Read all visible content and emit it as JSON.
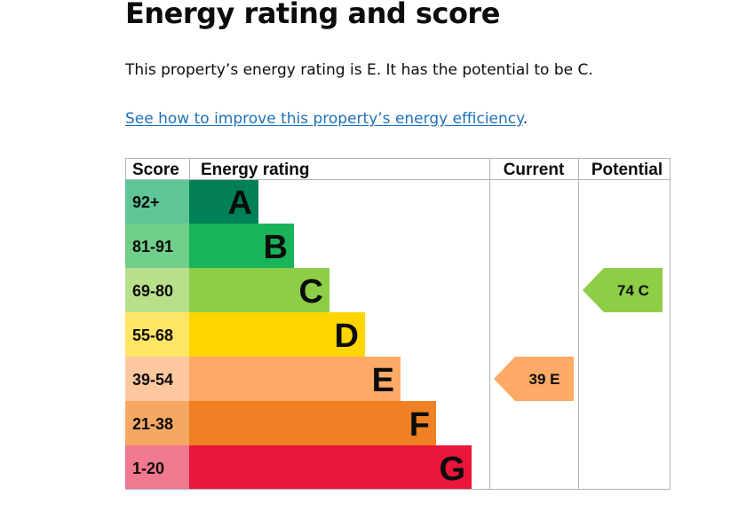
{
  "heading": "Energy rating and score",
  "summary": "This property’s energy rating is E. It has the potential to be C.",
  "improve_link": "See how to improve this property’s energy efficiency",
  "improve_suffix": ".",
  "chart_data": {
    "type": "bar",
    "headers": {
      "score": "Score",
      "rating": "Energy rating",
      "current": "Current",
      "potential": "Potential"
    },
    "bands": [
      {
        "band": "A",
        "score_range": "92+",
        "bar_color": "#008054",
        "score_color": "#5fc596"
      },
      {
        "band": "B",
        "score_range": "81-91",
        "bar_color": "#19b459",
        "score_color": "#6fcf8a"
      },
      {
        "band": "C",
        "score_range": "69-80",
        "bar_color": "#8dce46",
        "score_color": "#b8e08a"
      },
      {
        "band": "D",
        "score_range": "55-68",
        "bar_color": "#ffd500",
        "score_color": "#ffe566"
      },
      {
        "band": "E",
        "score_range": "39-54",
        "bar_color": "#fcaa65",
        "score_color": "#fdc89f"
      },
      {
        "band": "F",
        "score_range": "21-38",
        "bar_color": "#ef8023",
        "score_color": "#f5a863"
      },
      {
        "band": "G",
        "score_range": "1-20",
        "bar_color": "#e9153b",
        "score_color": "#f1798f"
      }
    ],
    "current": {
      "score": 39,
      "band": "E",
      "label": "39 E",
      "color": "#fcaa65"
    },
    "potential": {
      "score": 74,
      "band": "C",
      "label": "74 C",
      "color": "#8dce46"
    }
  }
}
